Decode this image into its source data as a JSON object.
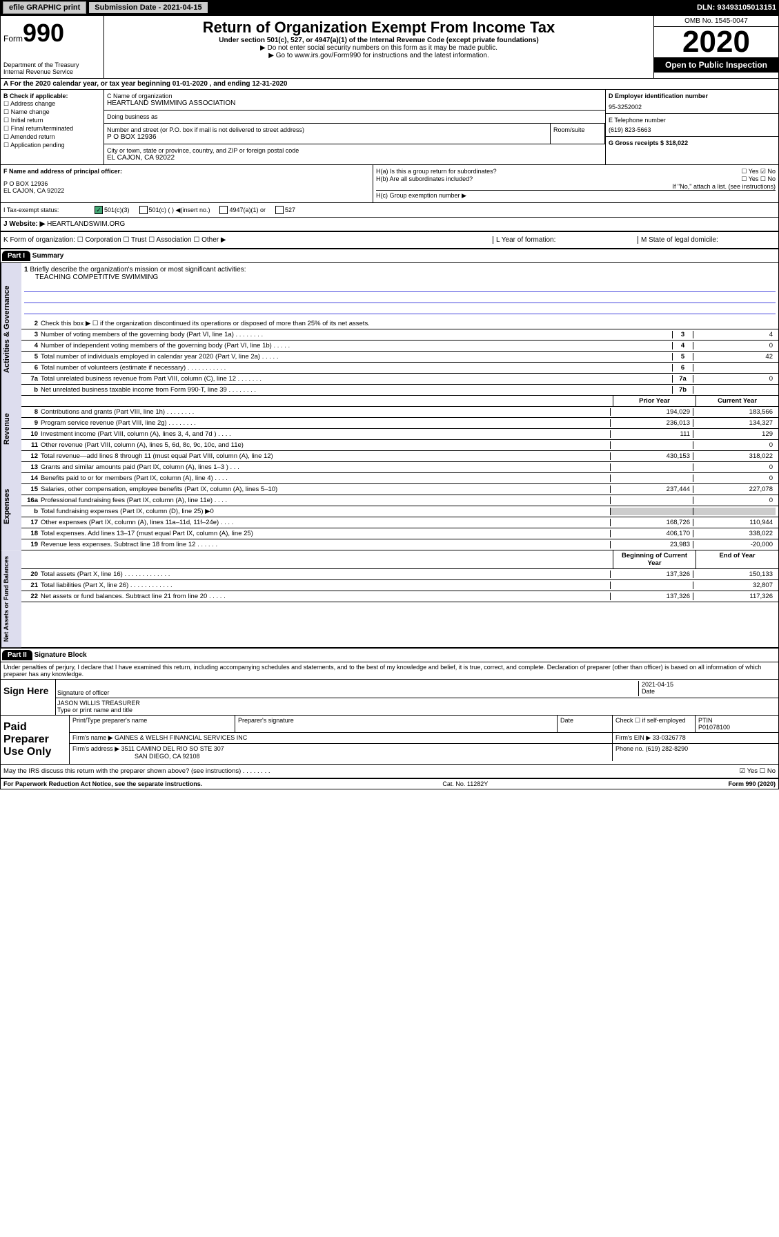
{
  "topbar": {
    "efile_btn": "efile GRAPHIC print",
    "sub_date": "Submission Date - 2021-04-15",
    "dln": "DLN: 93493105013151"
  },
  "header": {
    "form_label": "Form",
    "form_num": "990",
    "dept": "Department of the Treasury Internal Revenue Service",
    "title": "Return of Organization Exempt From Income Tax",
    "subtitle": "Under section 501(c), 527, or 4947(a)(1) of the Internal Revenue Code (except private foundations)",
    "note1": "▶ Do not enter social security numbers on this form as it may be made public.",
    "note2": "▶ Go to www.irs.gov/Form990 for instructions and the latest information.",
    "omb": "OMB No. 1545-0047",
    "year": "2020",
    "open": "Open to Public Inspection"
  },
  "period": "A For the 2020 calendar year, or tax year beginning 01-01-2020     , and ending 12-31-2020",
  "checkB": {
    "label": "B Check if applicable:",
    "items": [
      "☐ Address change",
      "☐ Name change",
      "☐ Initial return",
      "☐ Final return/terminated",
      "☐ Amended return",
      "☐ Application pending"
    ]
  },
  "org": {
    "name_label": "C Name of organization",
    "name": "HEARTLAND SWIMMING ASSOCIATION",
    "dba_label": "Doing business as",
    "dba": "",
    "addr_label": "Number and street (or P.O. box if mail is not delivered to street address)",
    "addr": "P O BOX 12936",
    "room_label": "Room/suite",
    "city_label": "City or town, state or province, country, and ZIP or foreign postal code",
    "city": "EL CAJON, CA  92022",
    "officer_label": "F Name and address of principal officer:",
    "officer_addr1": "P O BOX 12936",
    "officer_addr2": "EL CAJON, CA  92022"
  },
  "ein_box": {
    "d_label": "D Employer identification number",
    "ein": "95-3252002",
    "e_label": "E Telephone number",
    "phone": "(619) 823-5663",
    "g_label": "G Gross receipts $ 318,022"
  },
  "h_box": {
    "ha": "H(a)  Is this a group return for subordinates?",
    "ha_ans": "☐ Yes ☑ No",
    "hb": "H(b)  Are all subordinates included?",
    "hb_ans": "☐ Yes ☐ No",
    "hb_note": "If \"No,\" attach a list. (see instructions)",
    "hc": "H(c)  Group exemption number ▶"
  },
  "tax_status": {
    "label": "I    Tax-exempt status:",
    "opt1": "501(c)(3)",
    "opt2": "501(c) (   ) ◀(insert no.)",
    "opt3": "4947(a)(1) or",
    "opt4": "527"
  },
  "website": {
    "label": "J   Website: ▶",
    "val": "HEARTLANDSWIM.ORG"
  },
  "kform": {
    "label": "K Form of organization:  ☐ Corporation  ☐ Trust  ☐ Association  ☐ Other ▶",
    "l": "L Year of formation:",
    "m": "M State of legal domicile:"
  },
  "part1": {
    "header": "Part I",
    "title": "Summary",
    "line1": "Briefly describe the organization's mission or most significant activities:",
    "mission": "TEACHING COMPETITIVE SWIMMING",
    "line2": "Check this box ▶ ☐  if the organization discontinued its operations or disposed of more than 25% of its net assets.",
    "lines": [
      {
        "n": "3",
        "t": "Number of voting members of the governing body (Part VI, line 1a)  .   .   .   .   .   .   .   .",
        "box": "3",
        "v": "4"
      },
      {
        "n": "4",
        "t": "Number of independent voting members of the governing body (Part VI, line 1b)  .   .   .   .   .",
        "box": "4",
        "v": "0"
      },
      {
        "n": "5",
        "t": "Total number of individuals employed in calendar year 2020 (Part V, line 2a)  .   .   .   .   .",
        "box": "5",
        "v": "42"
      },
      {
        "n": "6",
        "t": "Total number of volunteers (estimate if necessary)  .   .   .   .   .   .   .   .   .   .   .",
        "box": "6",
        "v": ""
      },
      {
        "n": "7a",
        "t": "Total unrelated business revenue from Part VIII, column (C), line 12  .   .   .   .   .   .   .",
        "box": "7a",
        "v": "0"
      },
      {
        "n": "b",
        "t": "Net unrelated business taxable income from Form 990-T, line 39  .   .   .   .   .   .   .   .",
        "box": "7b",
        "v": ""
      }
    ],
    "rev_header": {
      "prior": "Prior Year",
      "curr": "Current Year"
    },
    "revenue": [
      {
        "n": "8",
        "t": "Contributions and grants (Part VIII, line 1h)  .   .   .   .   .   .   .   .",
        "p": "194,029",
        "c": "183,566"
      },
      {
        "n": "9",
        "t": "Program service revenue (Part VIII, line 2g)  .   .   .   .   .   .   .   .",
        "p": "236,013",
        "c": "134,327"
      },
      {
        "n": "10",
        "t": "Investment income (Part VIII, column (A), lines 3, 4, and 7d )  .   .   .   .",
        "p": "111",
        "c": "129"
      },
      {
        "n": "11",
        "t": "Other revenue (Part VIII, column (A), lines 5, 6d, 8c, 9c, 10c, and 11e)",
        "p": "",
        "c": "0"
      },
      {
        "n": "12",
        "t": "Total revenue—add lines 8 through 11 (must equal Part VIII, column (A), line 12)",
        "p": "430,153",
        "c": "318,022"
      }
    ],
    "expenses": [
      {
        "n": "13",
        "t": "Grants and similar amounts paid (Part IX, column (A), lines 1–3 )  .   .   .",
        "p": "",
        "c": "0"
      },
      {
        "n": "14",
        "t": "Benefits paid to or for members (Part IX, column (A), line 4)  .   .   .   .",
        "p": "",
        "c": "0"
      },
      {
        "n": "15",
        "t": "Salaries, other compensation, employee benefits (Part IX, column (A), lines 5–10)",
        "p": "237,444",
        "c": "227,078"
      },
      {
        "n": "16a",
        "t": "Professional fundraising fees (Part IX, column (A), line 11e)  .   .   .   .",
        "p": "",
        "c": "0"
      },
      {
        "n": "b",
        "t": "Total fundraising expenses (Part IX, column (D), line 25) ▶0",
        "p": "␀",
        "c": "␀"
      },
      {
        "n": "17",
        "t": "Other expenses (Part IX, column (A), lines 11a–11d, 11f–24e)  .   .   .   .",
        "p": "168,726",
        "c": "110,944"
      },
      {
        "n": "18",
        "t": "Total expenses. Add lines 13–17 (must equal Part IX, column (A), line 25)",
        "p": "406,170",
        "c": "338,022"
      },
      {
        "n": "19",
        "t": "Revenue less expenses. Subtract line 18 from line 12  .   .   .   .   .   .",
        "p": "23,983",
        "c": "-20,000"
      }
    ],
    "net_header": {
      "prior": "Beginning of Current Year",
      "curr": "End of Year"
    },
    "net": [
      {
        "n": "20",
        "t": "Total assets (Part X, line 16)  .   .   .   .   .   .   .   .   .   .   .   .   .",
        "p": "137,326",
        "c": "150,133"
      },
      {
        "n": "21",
        "t": "Total liabilities (Part X, line 26)  .   .   .   .   .   .   .   .   .   .   .   .",
        "p": "",
        "c": "32,807"
      },
      {
        "n": "22",
        "t": "Net assets or fund balances. Subtract line 21 from line 20  .   .   .   .   .",
        "p": "137,326",
        "c": "117,326"
      }
    ],
    "side_labels": {
      "gov": "Activities & Governance",
      "rev": "Revenue",
      "exp": "Expenses",
      "net": "Net Assets or Fund Balances"
    }
  },
  "part2": {
    "header": "Part II",
    "title": "Signature Block",
    "perjury": "Under penalties of perjury, I declare that I have examined this return, including accompanying schedules and statements, and to the best of my knowledge and belief, it is true, correct, and complete. Declaration of preparer (other than officer) is based on all information of which preparer has any knowledge.",
    "sign_here": "Sign Here",
    "sig_officer": "Signature of officer",
    "sig_date": "2021-04-15",
    "date_label": "Date",
    "officer_name": "JASON WILLIS  TREASURER",
    "officer_type": "Type or print name and title",
    "paid_label": "Paid Preparer Use Only",
    "prep_name_label": "Print/Type preparer's name",
    "prep_sig_label": "Preparer's signature",
    "prep_date_label": "Date",
    "check_self": "Check ☐ if self-employed",
    "ptin_label": "PTIN",
    "ptin": "P01078100",
    "firm_name_label": "Firm's name     ▶",
    "firm_name": "GAINES & WELSH FINANCIAL SERVICES INC",
    "firm_ein_label": "Firm's EIN ▶",
    "firm_ein": "33-0326778",
    "firm_addr_label": "Firm's address ▶",
    "firm_addr": "3511 CAMINO DEL RIO SO STE 307",
    "firm_city": "SAN DIEGO, CA  92108",
    "phone_label": "Phone no.",
    "phone": "(619) 282-8290",
    "discuss": "May the IRS discuss this return with the preparer shown above? (see instructions)  .   .   .   .   .   .   .   .",
    "discuss_ans": "☑ Yes  ☐ No"
  },
  "footer": {
    "left": "For Paperwork Reduction Act Notice, see the separate instructions.",
    "mid": "Cat. No. 11282Y",
    "right": "Form 990 (2020)"
  }
}
